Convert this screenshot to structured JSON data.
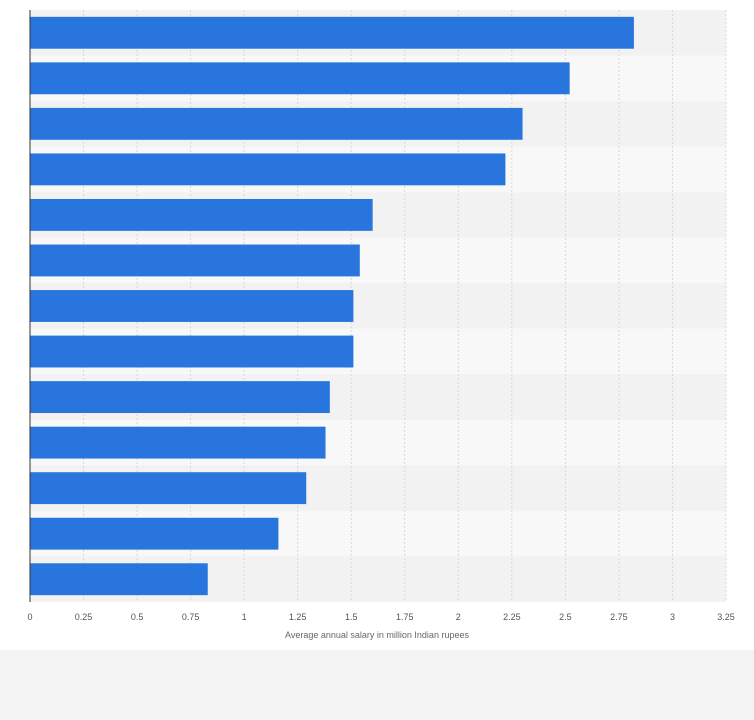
{
  "chart_data": {
    "type": "bar",
    "orientation": "horizontal",
    "categories": [
      "",
      "",
      "",
      "",
      "",
      "",
      "",
      "",
      "",
      "",
      "",
      "",
      ""
    ],
    "values": [
      2.82,
      2.52,
      2.3,
      2.22,
      1.6,
      1.54,
      1.51,
      1.51,
      1.4,
      1.38,
      1.29,
      1.16,
      0.83
    ],
    "xlabel": "Average annual salary in million Indian rupees",
    "ylabel": "",
    "xlim": [
      0,
      3.25
    ],
    "xticks": [
      "0",
      "0.25",
      "0.5",
      "0.75",
      "1",
      "1.25",
      "1.5",
      "1.75",
      "2",
      "2.25",
      "2.5",
      "2.75",
      "3",
      "3.25"
    ],
    "grid": true,
    "legend": "none",
    "colors": {
      "bar": "#2876dd",
      "band_light": "#f2f2f2",
      "band_lighter": "#f8f8f8",
      "grid": "#d8d8d8",
      "axis": "#333333"
    }
  }
}
